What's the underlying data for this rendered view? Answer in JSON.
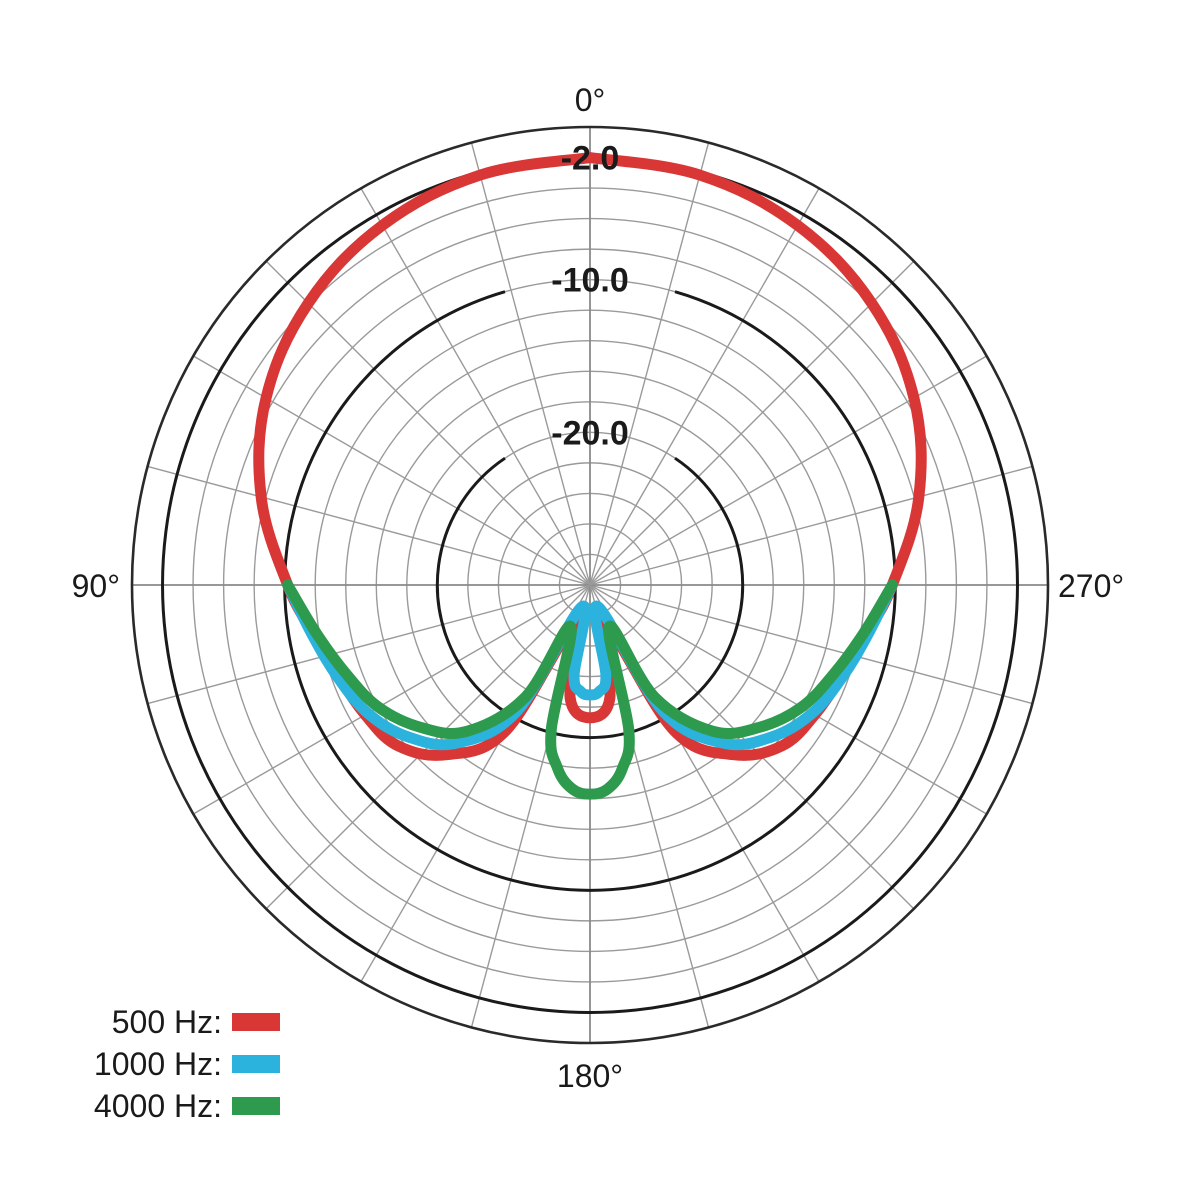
{
  "chart_data": {
    "type": "polar",
    "title": "",
    "angle_labels": [
      {
        "angle": 0,
        "text": "0°"
      },
      {
        "angle": 90,
        "text": "90°"
      },
      {
        "angle": 180,
        "text": "180°"
      },
      {
        "angle": 270,
        "text": "270°"
      }
    ],
    "angle_direction": "counterclockwise-from-top",
    "radial_unit": "dB",
    "radial_range": [
      -30,
      0
    ],
    "radial_gridlines": [
      -2,
      -4,
      -6,
      -8,
      -10,
      -12,
      -14,
      -16,
      -18,
      -20,
      -22,
      -24,
      -26,
      -28,
      -30
    ],
    "reference_rings": [
      {
        "value": -2.0,
        "label": "-2.0"
      },
      {
        "value": -10.0,
        "label": "-10.0"
      },
      {
        "value": -20.0,
        "label": "-20.0"
      }
    ],
    "angular_grid_step_deg": 15,
    "grid": true,
    "legend_position": "bottom-left",
    "series": [
      {
        "name": "500 Hz:",
        "color": "#d93636",
        "angles": [
          0,
          15,
          30,
          45,
          60,
          75,
          90,
          100,
          110,
          120,
          130,
          140,
          150,
          160,
          170,
          180,
          190,
          200,
          210,
          220,
          230,
          240,
          250,
          260,
          270,
          285,
          300,
          315,
          330,
          345,
          360
        ],
        "values": [
          -2,
          -2.2,
          -2.8,
          -3.9,
          -5.5,
          -7.7,
          -10.2,
          -11.6,
          -12.5,
          -13,
          -13.6,
          -15.5,
          -19,
          -27.5,
          -22.5,
          -21.3,
          -22.5,
          -27.5,
          -19,
          -15.5,
          -13.6,
          -13,
          -12.5,
          -11.6,
          -10.2,
          -7.7,
          -5.5,
          -3.9,
          -2.8,
          -2.2,
          -2
        ]
      },
      {
        "name": "1000 Hz:",
        "color": "#2bb3dd",
        "angles": [
          90,
          100,
          110,
          120,
          130,
          140,
          150,
          160,
          170,
          175,
          180,
          185,
          190,
          200,
          210,
          220,
          230,
          240,
          250,
          260,
          270
        ],
        "values": [
          -10.2,
          -11.5,
          -12.4,
          -13.2,
          -14.5,
          -16.5,
          -20.5,
          -28.5,
          -24,
          -23,
          -22.8,
          -23,
          -24,
          -28.5,
          -20.5,
          -16.5,
          -14.5,
          -13.2,
          -12.4,
          -11.5,
          -10.2
        ]
      },
      {
        "name": "4000 Hz:",
        "color": "#2e9a4e",
        "angles": [
          90,
          100,
          110,
          120,
          130,
          140,
          150,
          155,
          165,
          170,
          175,
          180,
          185,
          190,
          195,
          205,
          210,
          220,
          230,
          240,
          250,
          260,
          270
        ],
        "values": [
          -10.2,
          -11.8,
          -13,
          -14,
          -15.5,
          -17.5,
          -21.5,
          -27,
          -20.2,
          -17.8,
          -16.6,
          -16.3,
          -16.6,
          -17.8,
          -20.2,
          -27,
          -21.5,
          -17.5,
          -15.5,
          -14,
          -13,
          -11.8,
          -10.2
        ]
      }
    ]
  }
}
